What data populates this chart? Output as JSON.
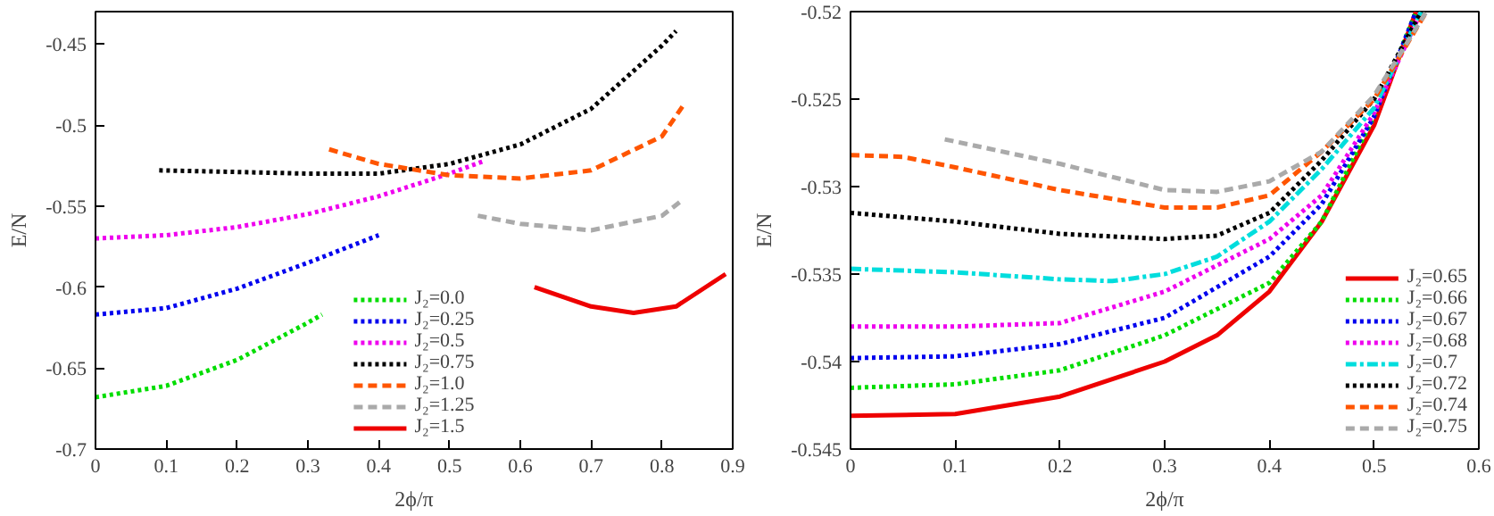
{
  "chart_data": [
    {
      "type": "line",
      "xlabel": "2ϕ/π",
      "ylabel": "E/N",
      "xlim": [
        0,
        0.9
      ],
      "ylim": [
        -0.7,
        -0.43
      ],
      "xticks": [
        0,
        0.1,
        0.2,
        0.3,
        0.4,
        0.5,
        0.6,
        0.7,
        0.8,
        0.9
      ],
      "yticks": [
        -0.7,
        -0.65,
        -0.6,
        -0.55,
        -0.5,
        -0.45
      ],
      "grid": false,
      "legend": "bottom",
      "series": [
        {
          "name": "J₂=0.0",
          "color": "#00dd00",
          "line_style": "dotted",
          "x": [
            0,
            0.1,
            0.2,
            0.3,
            0.32
          ],
          "values": [
            -0.668,
            -0.661,
            -0.645,
            -0.622,
            -0.617
          ]
        },
        {
          "name": "J₂=0.25",
          "color": "#0000ee",
          "line_style": "dotted",
          "x": [
            0,
            0.1,
            0.2,
            0.3,
            0.4
          ],
          "values": [
            -0.617,
            -0.613,
            -0.601,
            -0.585,
            -0.568
          ]
        },
        {
          "name": "J₂=0.5",
          "color": "#ee00ee",
          "line_style": "dotted",
          "x": [
            0,
            0.1,
            0.2,
            0.3,
            0.4,
            0.5,
            0.55
          ],
          "values": [
            -0.57,
            -0.568,
            -0.563,
            -0.555,
            -0.544,
            -0.53,
            -0.522
          ]
        },
        {
          "name": "J₂=0.75",
          "color": "#000000",
          "line_style": "dotted",
          "x": [
            0.09,
            0.2,
            0.3,
            0.4,
            0.5,
            0.6,
            0.7,
            0.8,
            0.82
          ],
          "values": [
            -0.528,
            -0.529,
            -0.53,
            -0.53,
            -0.524,
            -0.512,
            -0.49,
            -0.451,
            -0.442
          ]
        },
        {
          "name": "J₂=1.0",
          "color": "#ff5500",
          "line_style": "dashed",
          "x": [
            0.33,
            0.4,
            0.5,
            0.6,
            0.7,
            0.8,
            0.83
          ],
          "values": [
            -0.515,
            -0.524,
            -0.531,
            -0.533,
            -0.528,
            -0.507,
            -0.488
          ]
        },
        {
          "name": "J₂=1.25",
          "color": "#aaaaaa",
          "line_style": "dashed",
          "x": [
            0.54,
            0.6,
            0.7,
            0.8,
            0.83
          ],
          "values": [
            -0.556,
            -0.561,
            -0.565,
            -0.556,
            -0.546
          ]
        },
        {
          "name": "J₂=1.5",
          "color": "#ee0000",
          "line_style": "solid",
          "x": [
            0.62,
            0.7,
            0.76,
            0.82,
            0.89
          ],
          "values": [
            -0.6,
            -0.612,
            -0.616,
            -0.612,
            -0.592
          ]
        }
      ]
    },
    {
      "type": "line",
      "xlabel": "2ϕ/π",
      "ylabel": "E/N",
      "xlim": [
        0,
        0.6
      ],
      "ylim": [
        -0.545,
        -0.52
      ],
      "xticks": [
        0,
        0.1,
        0.2,
        0.3,
        0.4,
        0.5,
        0.6
      ],
      "yticks": [
        -0.545,
        -0.54,
        -0.535,
        -0.53,
        -0.525,
        -0.52
      ],
      "grid": false,
      "legend": "bottom right",
      "series": [
        {
          "name": "J₂=0.65",
          "color": "#ee0000",
          "line_style": "solid",
          "x": [
            0,
            0.1,
            0.2,
            0.3,
            0.35,
            0.4,
            0.45,
            0.5,
            0.54
          ],
          "values": [
            -0.5431,
            -0.543,
            -0.542,
            -0.54,
            -0.5385,
            -0.536,
            -0.532,
            -0.5265,
            -0.52
          ]
        },
        {
          "name": "J₂=0.66",
          "color": "#00dd00",
          "line_style": "dotted",
          "x": [
            0,
            0.1,
            0.2,
            0.3,
            0.4,
            0.45,
            0.5,
            0.54
          ],
          "values": [
            -0.5415,
            -0.5413,
            -0.5405,
            -0.5385,
            -0.5355,
            -0.532,
            -0.526,
            -0.52
          ]
        },
        {
          "name": "J₂=0.67",
          "color": "#0000ee",
          "line_style": "dotted",
          "x": [
            0,
            0.1,
            0.2,
            0.3,
            0.4,
            0.45,
            0.5,
            0.54
          ],
          "values": [
            -0.5398,
            -0.5397,
            -0.539,
            -0.5375,
            -0.534,
            -0.531,
            -0.526,
            -0.52
          ]
        },
        {
          "name": "J₂=0.68",
          "color": "#ee00ee",
          "line_style": "dotted",
          "x": [
            0,
            0.1,
            0.2,
            0.3,
            0.4,
            0.45,
            0.5,
            0.545
          ],
          "values": [
            -0.538,
            -0.538,
            -0.5378,
            -0.536,
            -0.533,
            -0.5305,
            -0.5258,
            -0.52
          ]
        },
        {
          "name": "J₂=0.7",
          "color": "#00dddd",
          "line_style": "dashdot",
          "x": [
            0,
            0.1,
            0.2,
            0.25,
            0.3,
            0.35,
            0.4,
            0.45,
            0.5,
            0.545
          ],
          "values": [
            -0.5347,
            -0.5349,
            -0.5353,
            -0.5354,
            -0.535,
            -0.534,
            -0.532,
            -0.529,
            -0.5255,
            -0.52
          ]
        },
        {
          "name": "J₂=0.72",
          "color": "#000000",
          "line_style": "dotted",
          "x": [
            0,
            0.1,
            0.2,
            0.3,
            0.35,
            0.4,
            0.45,
            0.5,
            0.545
          ],
          "values": [
            -0.5315,
            -0.532,
            -0.5327,
            -0.533,
            -0.5328,
            -0.5315,
            -0.5285,
            -0.525,
            -0.52
          ]
        },
        {
          "name": "J₂=0.74",
          "color": "#ff5500",
          "line_style": "dashed",
          "x": [
            0,
            0.05,
            0.1,
            0.2,
            0.3,
            0.35,
            0.4,
            0.45,
            0.5,
            0.55
          ],
          "values": [
            -0.5282,
            -0.5283,
            -0.5289,
            -0.5302,
            -0.5312,
            -0.5312,
            -0.5305,
            -0.528,
            -0.525,
            -0.52
          ]
        },
        {
          "name": "J₂=0.75",
          "color": "#aaaaaa",
          "line_style": "dashed",
          "x": [
            0.09,
            0.2,
            0.3,
            0.35,
            0.4,
            0.45,
            0.5,
            0.55
          ],
          "values": [
            -0.5273,
            -0.5287,
            -0.5302,
            -0.5303,
            -0.5297,
            -0.528,
            -0.5248,
            -0.52
          ]
        }
      ]
    }
  ]
}
